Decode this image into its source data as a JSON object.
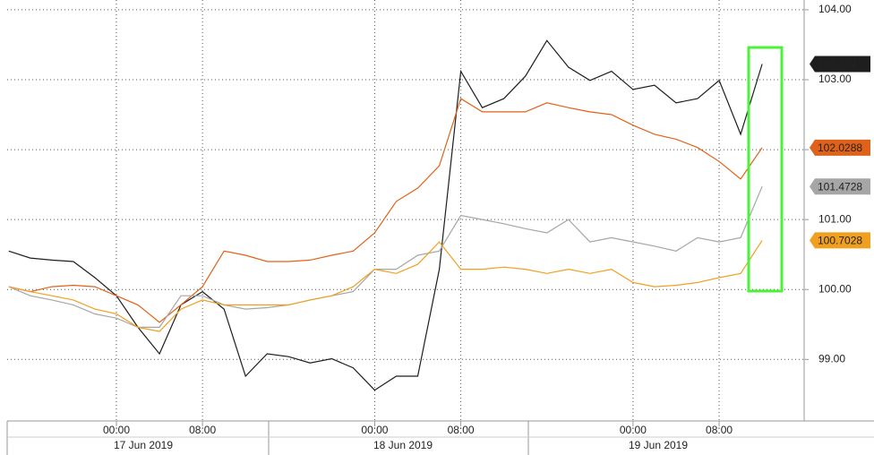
{
  "chart_data": {
    "type": "line",
    "x": [
      -10,
      -8,
      -6,
      -4,
      -2,
      0,
      2,
      4,
      6,
      8,
      10,
      12,
      14,
      16,
      18,
      20,
      22,
      24,
      26,
      28,
      30,
      32,
      34,
      36,
      38,
      40,
      42,
      44,
      46,
      48,
      50,
      52,
      54,
      56,
      58,
      60
    ],
    "xlim": [
      -10.15,
      63.9
    ],
    "xticks": [
      {
        "value": 0,
        "label": "00:00"
      },
      {
        "value": 8,
        "label": "08:00"
      },
      {
        "value": 24,
        "label": "00:00"
      },
      {
        "value": 32,
        "label": "08:00"
      },
      {
        "value": 48,
        "label": "00:00"
      },
      {
        "value": 56,
        "label": "08:00"
      }
    ],
    "date_labels": [
      "17 Jun 2019",
      "18 Jun 2019",
      "19 Jun 2019"
    ],
    "ylim": [
      98.12,
      104.14
    ],
    "yticks": [
      {
        "value": 99,
        "label": "99.00"
      },
      {
        "value": 100,
        "label": "100.00"
      },
      {
        "value": 101,
        "label": "101.00"
      },
      {
        "value": 102,
        "label": "102.00"
      },
      {
        "value": 103,
        "label": "103.00"
      },
      {
        "value": 104,
        "label": "104.00"
      }
    ],
    "grid": true,
    "series": [
      {
        "color": "#1e1e1e",
        "label_text_color": "#ffffff",
        "values": [
          100.55,
          100.45,
          100.42,
          100.4,
          100.17,
          99.91,
          99.46,
          99.08,
          99.78,
          99.97,
          99.72,
          98.76,
          99.08,
          99.04,
          98.95,
          99.01,
          98.88,
          98.56,
          98.76,
          98.76,
          100.29,
          103.12,
          102.6,
          102.73,
          103.05,
          103.56,
          103.18,
          102.99,
          103.12,
          102.86,
          102.92,
          102.67,
          102.73,
          102.99,
          102.22,
          103.224
        ]
      },
      {
        "color": "#e0621a",
        "label_text_color": "#ffffff",
        "values": [
          100.04,
          99.97,
          100.04,
          100.06,
          100.04,
          99.91,
          99.78,
          99.53,
          99.78,
          100.04,
          100.55,
          100.49,
          100.4,
          100.4,
          100.42,
          100.49,
          100.55,
          100.81,
          101.26,
          101.45,
          101.77,
          102.73,
          102.54,
          102.54,
          102.54,
          102.67,
          102.6,
          102.54,
          102.5,
          102.35,
          102.22,
          102.15,
          102.03,
          101.83,
          101.58,
          102.0288
        ]
      },
      {
        "color": "#a6a6a6",
        "label_text_color": "#111111",
        "values": [
          100.04,
          99.91,
          99.85,
          99.78,
          99.65,
          99.59,
          99.46,
          99.46,
          99.91,
          99.91,
          99.78,
          99.72,
          99.74,
          99.78,
          99.85,
          99.91,
          99.97,
          100.29,
          100.29,
          100.49,
          100.55,
          101.06,
          101.0,
          100.94,
          100.87,
          100.81,
          101.0,
          100.68,
          100.74,
          100.68,
          100.62,
          100.55,
          100.74,
          100.68,
          100.74,
          101.4728
        ]
      },
      {
        "color": "#f0a020",
        "label_text_color": "#111111",
        "values": [
          100.04,
          99.97,
          99.91,
          99.85,
          99.72,
          99.65,
          99.46,
          99.4,
          99.72,
          99.85,
          99.78,
          99.78,
          99.78,
          99.78,
          99.85,
          99.91,
          100.04,
          100.29,
          100.23,
          100.36,
          100.68,
          100.29,
          100.29,
          100.32,
          100.29,
          100.23,
          100.29,
          100.23,
          100.29,
          100.1,
          100.04,
          100.06,
          100.1,
          100.17,
          100.23,
          100.7028
        ]
      }
    ]
  }
}
